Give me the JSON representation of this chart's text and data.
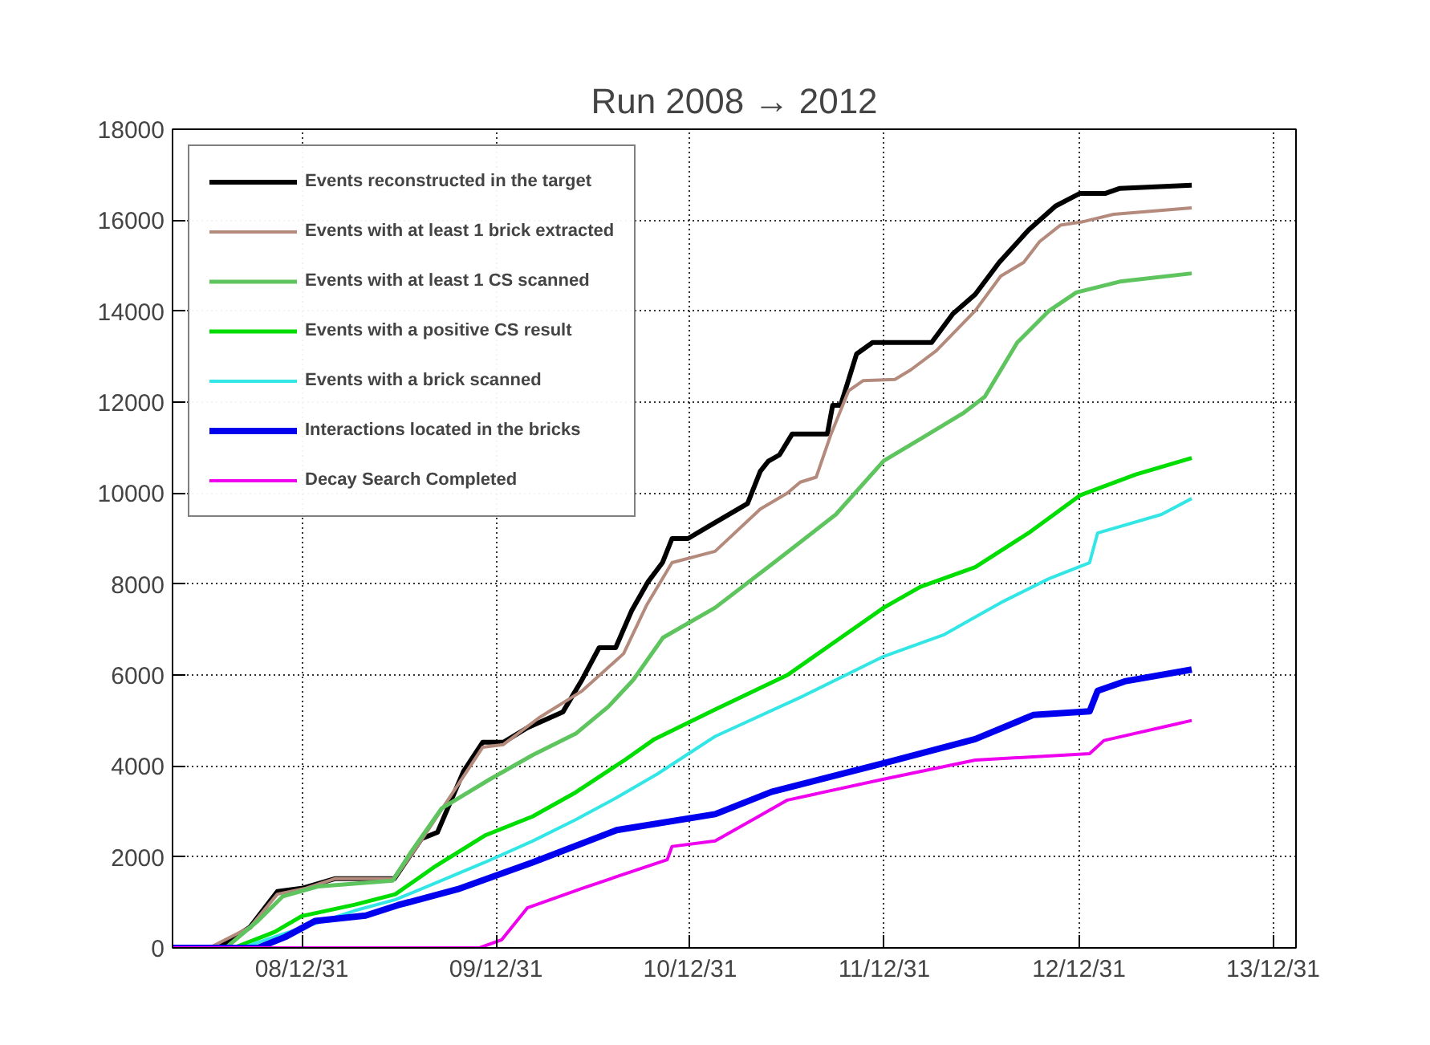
{
  "chart_data": {
    "type": "line",
    "title": "Run 2008 → 2012",
    "xlim": [
      "2008-05-02",
      "2014-02-12"
    ],
    "ylim": [
      0,
      18000
    ],
    "xticks": [
      {
        "value": "2008-12-31",
        "label": "08/12/31"
      },
      {
        "value": "2009-12-31",
        "label": "09/12/31"
      },
      {
        "value": "2010-12-31",
        "label": "10/12/31"
      },
      {
        "value": "2011-12-31",
        "label": "11/12/31"
      },
      {
        "value": "2012-12-31",
        "label": "12/12/31"
      },
      {
        "value": "2013-12-31",
        "label": "13/12/31"
      }
    ],
    "yticks": [
      0,
      2000,
      4000,
      6000,
      8000,
      10000,
      12000,
      14000,
      16000,
      18000
    ],
    "grid": true,
    "legend": "top left",
    "line_style": "solid",
    "series": [
      {
        "name": "Events reconstructed in the target",
        "color": "#000000",
        "x": [
          "2008-05-02",
          "2008-07-26",
          "2008-09-25",
          "2008-11-15",
          "2008-12-31",
          "2009-03-03",
          "2009-06-23",
          "2009-08-13",
          "2009-09-12",
          "2009-10-31",
          "2009-12-06",
          "2010-01-14",
          "2010-02-28",
          "2010-05-06",
          "2010-06-11",
          "2010-07-13",
          "2010-08-13",
          "2010-09-12",
          "2010-10-13",
          "2010-11-09",
          "2010-11-27",
          "2010-12-27",
          "2011-02-01",
          "2011-04-18",
          "2011-05-12",
          "2011-05-27",
          "2011-06-17",
          "2011-07-11",
          "2011-09-15",
          "2011-09-25",
          "2011-10-10",
          "2011-11-09",
          "2011-12-09",
          "2012-03-29",
          "2012-05-08",
          "2012-06-19",
          "2012-08-03",
          "2012-09-27",
          "2012-11-17",
          "2013-01-02",
          "2013-02-19",
          "2013-03-18",
          "2013-07-31"
        ],
        "values": [
          0,
          0,
          460,
          1240,
          1310,
          1520,
          1520,
          2400,
          2540,
          3880,
          4520,
          4520,
          4840,
          5190,
          5900,
          6600,
          6600,
          7410,
          8050,
          8470,
          9000,
          9000,
          9250,
          9770,
          10480,
          10700,
          10840,
          11300,
          11300,
          11930,
          11930,
          13060,
          13310,
          13310,
          13940,
          14370,
          15070,
          15780,
          16310,
          16590,
          16590,
          16700,
          16770
        ]
      },
      {
        "name": "Events with at least 1 brick extracted",
        "color": "#b48a7c",
        "x": [
          "2008-05-02",
          "2008-07-10",
          "2008-09-25",
          "2008-11-15",
          "2009-01-08",
          "2009-03-03",
          "2009-06-23",
          "2009-08-13",
          "2009-10-31",
          "2009-12-06",
          "2010-01-14",
          "2010-03-22",
          "2010-06-11",
          "2010-08-28",
          "2010-10-10",
          "2010-11-27",
          "2011-02-16",
          "2011-05-12",
          "2011-07-02",
          "2011-07-26",
          "2011-08-25",
          "2011-09-22",
          "2011-10-25",
          "2011-11-21",
          "2012-01-20",
          "2012-02-19",
          "2012-04-07",
          "2012-06-19",
          "2012-08-06",
          "2012-09-18",
          "2012-10-18",
          "2012-11-26",
          "2013-01-05",
          "2013-03-06",
          "2013-07-31"
        ],
        "values": [
          0,
          0,
          460,
          1180,
          1310,
          1520,
          1520,
          2370,
          3770,
          4410,
          4470,
          5060,
          5650,
          6470,
          7530,
          8470,
          8720,
          9650,
          10000,
          10240,
          10350,
          11300,
          12250,
          12470,
          12500,
          12710,
          13130,
          14010,
          14770,
          15070,
          15530,
          15890,
          15960,
          16130,
          16270
        ]
      },
      {
        "name": "Events with at least 1 CS scanned",
        "color": "#5ec45e",
        "x": [
          "2008-05-02",
          "2008-08-10",
          "2008-10-10",
          "2008-11-25",
          "2009-01-30",
          "2009-06-20",
          "2009-07-25",
          "2009-09-20",
          "2009-12-20",
          "2010-03-10",
          "2010-05-30",
          "2010-07-30",
          "2010-09-15",
          "2010-11-10",
          "2011-02-16",
          "2011-06-10",
          "2011-10-01",
          "2011-12-30",
          "2012-03-08",
          "2012-05-29",
          "2012-07-07",
          "2012-09-06",
          "2012-11-05",
          "2012-12-26",
          "2013-03-18",
          "2013-07-31"
        ],
        "values": [
          0,
          0,
          600,
          1130,
          1350,
          1480,
          2120,
          3070,
          3710,
          4240,
          4710,
          5300,
          5890,
          6820,
          7480,
          8500,
          9530,
          10710,
          11190,
          11770,
          12120,
          13310,
          14010,
          14410,
          14650,
          14830
        ]
      },
      {
        "name": "Events with a positive CS result",
        "color": "#00dd00",
        "x": [
          "2008-05-02",
          "2008-08-25",
          "2008-11-10",
          "2008-12-31",
          "2009-04-10",
          "2009-06-25",
          "2009-09-05",
          "2009-12-10",
          "2010-03-10",
          "2010-05-30",
          "2010-08-30",
          "2010-10-25",
          "2011-02-16",
          "2011-07-02",
          "2011-12-30",
          "2012-03-08",
          "2012-06-19",
          "2012-09-27",
          "2013-01-02",
          "2013-04-17",
          "2013-07-31"
        ],
        "values": [
          0,
          0,
          350,
          700,
          950,
          1180,
          1770,
          2470,
          2890,
          3420,
          4130,
          4590,
          5240,
          6000,
          7480,
          7940,
          8370,
          9120,
          9950,
          10410,
          10770
        ]
      },
      {
        "name": "Events with a brick scanned",
        "color": "#33e6e6",
        "x": [
          "2008-05-02",
          "2008-09-10",
          "2008-11-25",
          "2009-01-08",
          "2009-04-10",
          "2009-06-25",
          "2009-09-05",
          "2009-12-10",
          "2010-03-10",
          "2010-05-30",
          "2010-08-13",
          "2010-10-30",
          "2011-02-16",
          "2011-08-01",
          "2011-12-30",
          "2012-04-20",
          "2012-08-06",
          "2012-11-05",
          "2013-01-20",
          "2013-02-04",
          "2013-06-04",
          "2013-07-31"
        ],
        "values": [
          0,
          0,
          300,
          470,
          820,
          1060,
          1410,
          1880,
          2350,
          2820,
          3290,
          3820,
          4650,
          5540,
          6410,
          6880,
          7590,
          8120,
          8470,
          9120,
          9530,
          9880
        ]
      },
      {
        "name": "Interactions located in the bricks",
        "color": "#0000ee",
        "x": [
          "2008-05-02",
          "2008-10-10",
          "2008-11-30",
          "2009-01-25",
          "2009-04-30",
          "2009-06-30",
          "2009-10-20",
          "2010-03-10",
          "2010-08-15",
          "2011-02-16",
          "2011-06-02",
          "2011-12-30",
          "2012-06-19",
          "2012-10-06",
          "2013-01-20",
          "2013-02-04",
          "2013-03-27",
          "2013-07-31"
        ],
        "values": [
          0,
          0,
          240,
          590,
          710,
          940,
          1290,
          1880,
          2590,
          2940,
          3430,
          4060,
          4590,
          5120,
          5200,
          5650,
          5860,
          6120
        ]
      },
      {
        "name": "Decay Search Completed",
        "color": "#ee00ee",
        "x": [
          "2008-05-02",
          "2009-11-30",
          "2010-01-11",
          "2010-02-28",
          "2010-06-11",
          "2010-11-18",
          "2010-11-27",
          "2011-02-16",
          "2011-07-02",
          "2011-12-30",
          "2012-06-19",
          "2013-01-20",
          "2013-02-16",
          "2013-06-16",
          "2013-07-31"
        ],
        "values": [
          0,
          0,
          180,
          880,
          1310,
          1940,
          2230,
          2350,
          3250,
          3710,
          4130,
          4270,
          4560,
          4880,
          5000
        ]
      }
    ]
  }
}
